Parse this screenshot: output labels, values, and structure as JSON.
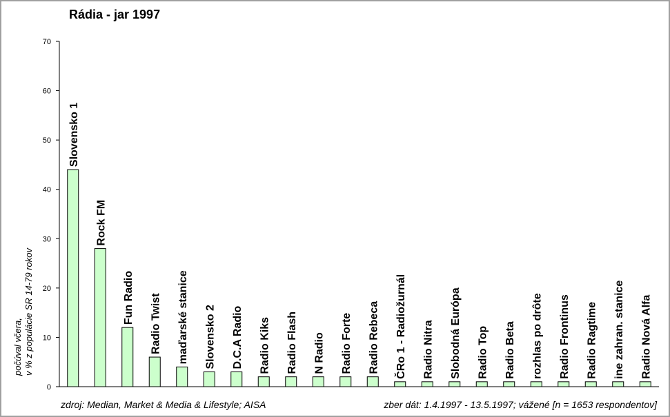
{
  "chart_data": {
    "type": "bar",
    "title": "Rádia - jar 1997",
    "y_label": [
      "počúval včera,",
      "v % z populácie SR 14-79 rokov"
    ],
    "source": "zdroj: Median, Market & Media & Lifestyle; AISA",
    "note": "zber dát: 1.4.1997 - 13.5.1997; vážené [n = 1653 respondentov]",
    "categories": [
      "Slovensko 1",
      "Rock FM",
      "Fun Radio",
      "Radio Twist",
      "maďarské stanice",
      "Slovensko 2",
      "D.C.A Radio",
      "Radio Kiks",
      "Radio Flash",
      "N Radio",
      "Radio Forte",
      "Radio Rebeca",
      "ČRo 1 - Radiožurnál",
      "Radio Nitra",
      "Slobodná Európa",
      "Radio Top",
      "Radio Beta",
      "rozhlas po drôte",
      "Radio Frontinus",
      "Radio Ragtime",
      "ine zahran. stanice",
      "Radio Nová Alfa"
    ],
    "values": [
      44,
      28,
      12,
      6,
      4,
      3,
      3,
      2,
      2,
      2,
      2,
      2,
      1,
      1,
      1,
      1,
      1,
      1,
      1,
      1,
      1,
      1
    ],
    "color": "#ccffcc",
    "ylim": [
      0,
      70
    ],
    "yticks": [
      0,
      10,
      20,
      30,
      40,
      50,
      60,
      70
    ],
    "grid": false
  }
}
